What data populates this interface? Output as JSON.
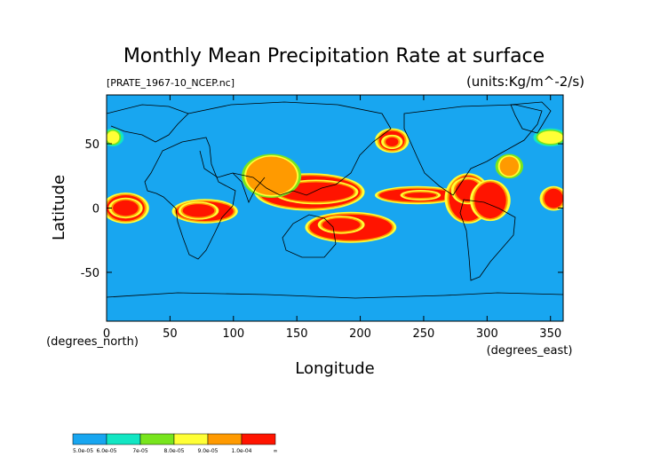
{
  "chart_data": {
    "type": "heatmap",
    "title": "Monthly Mean Precipitation Rate at surface",
    "subtitle_left": "[PRATE_1967-10_NCEP.nc]",
    "subtitle_right": "(units:Kg/m^-2/s)",
    "xlabel": "Longitude",
    "ylabel": "Latitude",
    "x_unit_label": "(degrees_east)",
    "y_unit_label": "(degrees_north)",
    "xlim": [
      0,
      360
    ],
    "ylim": [
      -88,
      88
    ],
    "x_ticks": [
      0,
      50,
      100,
      150,
      200,
      250,
      300,
      350
    ],
    "y_ticks": [
      -50,
      0,
      50
    ],
    "legend": {
      "position": "bottom-left",
      "labels": [
        "5.0e-05",
        "6.0e-05",
        "7e-05",
        "8.0e-05",
        "9.0e-05",
        "1.0e-04",
        "∞"
      ],
      "colors": [
        "#18a6f0",
        "#12e6c3",
        "#78e51d",
        "#ffff36",
        "#ff9a00",
        "#ff1400"
      ]
    },
    "background_color": "#18a6f0",
    "regions": [
      {
        "lon": [
          120,
          200
        ],
        "lat": [
          0,
          25
        ],
        "band": 5
      },
      {
        "lon": [
          135,
          195
        ],
        "lat": [
          5,
          20
        ],
        "band": 6
      },
      {
        "lon": [
          55,
          100
        ],
        "lat": [
          -10,
          5
        ],
        "band": 5
      },
      {
        "lon": [
          60,
          85
        ],
        "lat": [
          -7,
          3
        ],
        "band": 6
      },
      {
        "lon": [
          0,
          30
        ],
        "lat": [
          -10,
          10
        ],
        "band": 5
      },
      {
        "lon": [
          5,
          25
        ],
        "lat": [
          -6,
          6
        ],
        "band": 6
      },
      {
        "lon": [
          160,
          225
        ],
        "lat": [
          -25,
          -5
        ],
        "band": 5
      },
      {
        "lon": [
          170,
          200
        ],
        "lat": [
          -18,
          -8
        ],
        "band": 6
      },
      {
        "lon": [
          215,
          275
        ],
        "lat": [
          5,
          15
        ],
        "band": 5
      },
      {
        "lon": [
          235,
          260
        ],
        "lat": [
          8,
          12
        ],
        "band": 6
      },
      {
        "lon": [
          270,
          300
        ],
        "lat": [
          -10,
          25
        ],
        "band": 5
      },
      {
        "lon": [
          275,
          295
        ],
        "lat": [
          5,
          22
        ],
        "band": 6
      },
      {
        "lon": [
          290,
          315
        ],
        "lat": [
          -8,
          20
        ],
        "band": 5
      },
      {
        "lon": [
          215,
          235
        ],
        "lat": [
          45,
          60
        ],
        "band": 5
      },
      {
        "lon": [
          220,
          230
        ],
        "lat": [
          48,
          55
        ],
        "band": 6
      },
      {
        "lon": [
          110,
          150
        ],
        "lat": [
          10,
          40
        ],
        "band": 4
      },
      {
        "lon": [
          345,
          360
        ],
        "lat": [
          0,
          15
        ],
        "band": 5
      },
      {
        "lon": [
          310,
          325
        ],
        "lat": [
          25,
          40
        ],
        "band": 4
      },
      {
        "lon": [
          0,
          10
        ],
        "lat": [
          50,
          60
        ],
        "band": 3
      },
      {
        "lon": [
          340,
          360
        ],
        "lat": [
          50,
          60
        ],
        "band": 3
      }
    ]
  }
}
